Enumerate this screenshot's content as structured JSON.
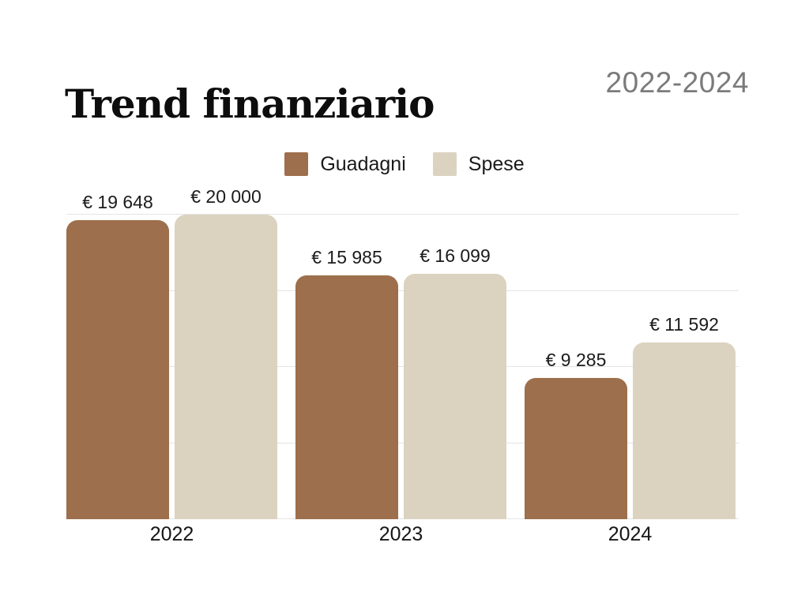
{
  "header": {
    "title": "Trend finanziario",
    "period": "2022-2024"
  },
  "chart_data": {
    "type": "bar",
    "title": "Trend finanziario",
    "subtitle": "2022-2024",
    "categories": [
      "2022",
      "2023",
      "2024"
    ],
    "series": [
      {
        "name": "Guadagni",
        "color": "#9D6F4C",
        "values": [
          19648,
          15985,
          9285
        ],
        "labels": [
          "€ 19 648",
          "€ 15 985",
          "€ 9 285"
        ]
      },
      {
        "name": "Spese",
        "color": "#DBD3C0",
        "values": [
          20000,
          16099,
          11592
        ],
        "labels": [
          "€ 20 000",
          "€ 16 099",
          "€ 11 592"
        ]
      }
    ],
    "ylim": [
      0,
      20000
    ],
    "gridline_step": 5000,
    "grid": true,
    "legend_position": "top-center",
    "value_prefix": "€"
  },
  "colors": {
    "guadagni": "#9D6F4C",
    "spese": "#DBD3C0",
    "grid": "#E4E4E4",
    "title_text": "#0D0D0D",
    "period_text": "#7B7B7B",
    "label_text": "#1B1B1B"
  }
}
